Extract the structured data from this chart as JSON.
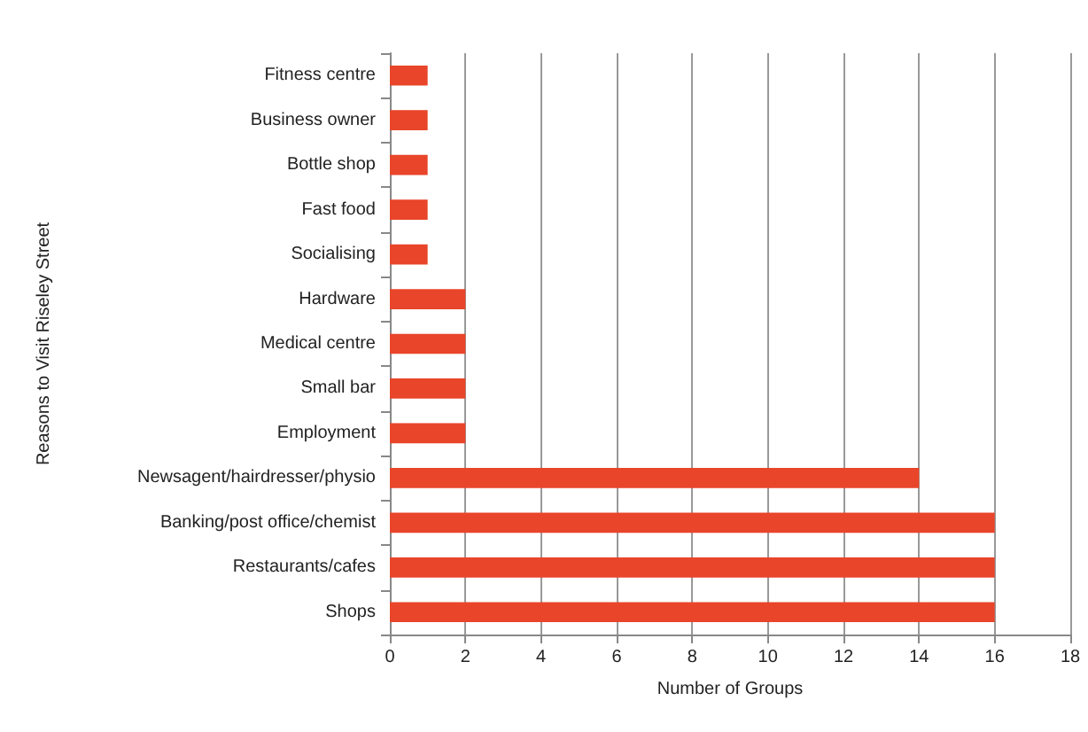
{
  "chart_data": {
    "type": "bar",
    "orientation": "horizontal",
    "xlabel": "Number of Groups",
    "ylabel": "Reasons to Visit Riseley Street",
    "categories": [
      "Fitness centre",
      "Business owner",
      "Bottle shop",
      "Fast food",
      "Socialising",
      "Hardware",
      "Medical centre",
      "Small bar",
      "Employment",
      "Newsagent/hairdresser/physio",
      "Banking/post office/chemist",
      "Restaurants/cafes",
      "Shops"
    ],
    "values": [
      1,
      1,
      1,
      1,
      1,
      2,
      2,
      2,
      2,
      14,
      16,
      16,
      16
    ],
    "color": "#e8452a",
    "xlim": [
      0,
      18
    ],
    "xticks": [
      0,
      2,
      4,
      6,
      8,
      10,
      12,
      14,
      16,
      18
    ],
    "grid": "x"
  }
}
